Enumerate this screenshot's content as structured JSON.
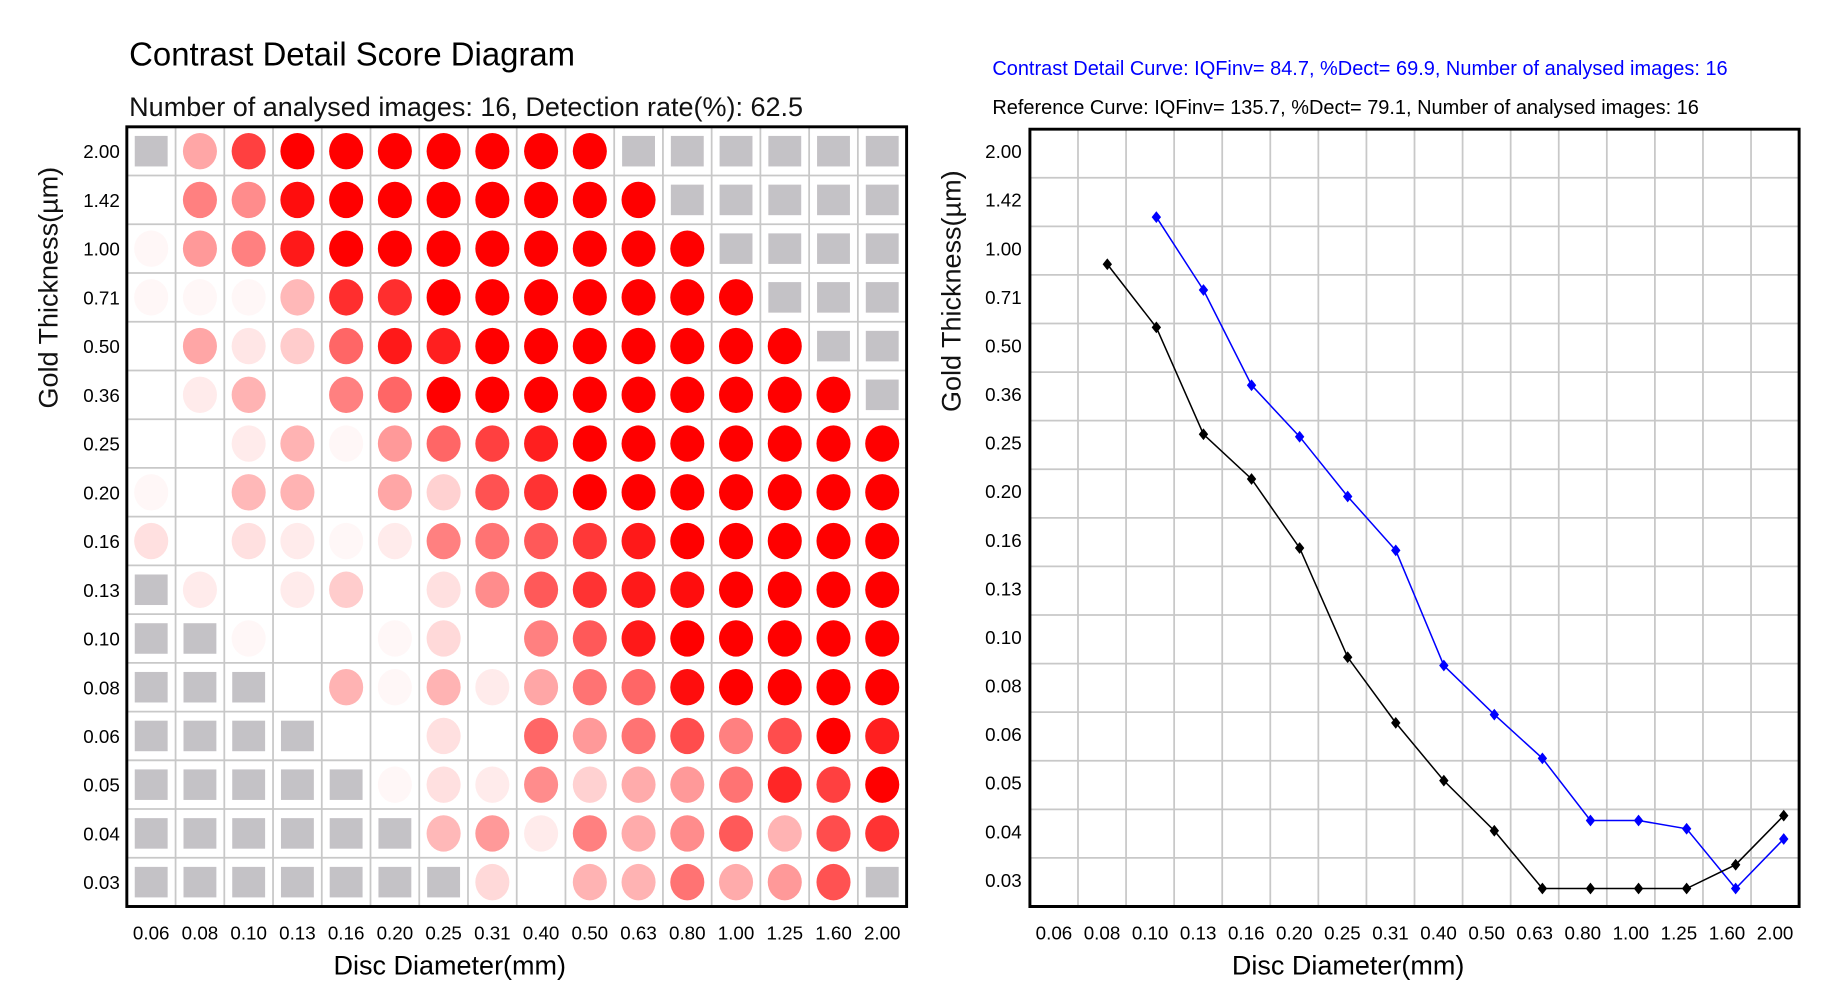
{
  "chart_data": [
    {
      "type": "heatmap",
      "title": "Contrast Detail Score Diagram",
      "subtitle": "Number of analysed images: 16, Detection rate(%): 62.5",
      "xlabel": "Disc Diameter(mm)",
      "ylabel": "Gold Thickness(µm)",
      "x_categories": [
        "0.06",
        "0.08",
        "0.10",
        "0.13",
        "0.16",
        "0.20",
        "0.25",
        "0.31",
        "0.40",
        "0.50",
        "0.63",
        "0.80",
        "1.00",
        "1.25",
        "1.60",
        "2.00"
      ],
      "y_categories": [
        "2.00",
        "1.42",
        "1.00",
        "0.71",
        "0.50",
        "0.36",
        "0.25",
        "0.20",
        "0.16",
        "0.13",
        "0.10",
        "0.08",
        "0.06",
        "0.05",
        "0.04",
        "0.03"
      ],
      "cell_legend": {
        "S": "not scored (grey square)",
        "number": "detection score 0–1 (red intensity)"
      },
      "colors": {
        "detected": "#ff0000",
        "not_scored": "#c4c2c6",
        "grid": "#c8c8c8"
      },
      "cells": [
        [
          "S",
          0.35,
          0.75,
          1,
          1,
          1,
          1,
          1,
          1,
          1,
          "S",
          "S",
          "S",
          "S",
          "S",
          "S"
        ],
        [
          0,
          0.5,
          0.45,
          0.95,
          1,
          1,
          1,
          1,
          1,
          1,
          1,
          "S",
          "S",
          "S",
          "S",
          "S"
        ],
        [
          0.03,
          0.4,
          0.5,
          0.9,
          1,
          1,
          1,
          1,
          1,
          1,
          1,
          1,
          "S",
          "S",
          "S",
          "S"
        ],
        [
          0.03,
          0.03,
          0.03,
          0.28,
          0.82,
          0.82,
          1,
          1,
          1,
          1,
          1,
          1,
          1,
          "S",
          "S",
          "S"
        ],
        [
          0,
          0.35,
          0.1,
          0.2,
          0.6,
          0.9,
          0.88,
          1,
          1,
          1,
          1,
          1,
          1,
          1,
          "S",
          "S"
        ],
        [
          0,
          0.08,
          0.3,
          0,
          0.5,
          0.6,
          1,
          1,
          1,
          1,
          1,
          1,
          1,
          1,
          1,
          "S"
        ],
        [
          0,
          0,
          0.08,
          0.3,
          0.03,
          0.4,
          0.6,
          0.75,
          0.88,
          1,
          1,
          1,
          1,
          1,
          1,
          1
        ],
        [
          0.03,
          0,
          0.28,
          0.3,
          0,
          0.35,
          0.18,
          0.68,
          0.8,
          1,
          1,
          1,
          1,
          1,
          1,
          1
        ],
        [
          0.12,
          0,
          0.12,
          0.08,
          0.03,
          0.08,
          0.5,
          0.55,
          0.65,
          0.78,
          0.9,
          1,
          1,
          1,
          1,
          1
        ],
        [
          "S",
          0.08,
          0,
          0.08,
          0.2,
          0,
          0.12,
          0.45,
          0.65,
          0.8,
          0.9,
          0.95,
          1,
          1,
          1,
          1
        ],
        [
          "S",
          "S",
          0.03,
          0,
          0,
          0.03,
          0.15,
          0,
          0.5,
          0.65,
          0.9,
          1,
          1,
          1,
          1,
          1
        ],
        [
          "S",
          "S",
          "S",
          0,
          0.3,
          0.03,
          0.3,
          0.08,
          0.35,
          0.55,
          0.6,
          0.95,
          1,
          1,
          1,
          1
        ],
        [
          "S",
          "S",
          "S",
          "S",
          0,
          0,
          0.12,
          0,
          0.6,
          0.4,
          0.55,
          0.7,
          0.5,
          0.7,
          1,
          0.88
        ],
        [
          "S",
          "S",
          "S",
          "S",
          "S",
          0.03,
          0.12,
          0.08,
          0.45,
          0.18,
          0.33,
          0.4,
          0.55,
          0.85,
          0.75,
          1
        ],
        [
          "S",
          "S",
          "S",
          "S",
          "S",
          "S",
          0.28,
          0.4,
          0.08,
          0.5,
          0.33,
          0.45,
          0.65,
          0.3,
          0.7,
          0.8
        ],
        [
          "S",
          "S",
          "S",
          "S",
          "S",
          "S",
          "S",
          0.15,
          0,
          0.3,
          0.3,
          0.55,
          0.33,
          0.4,
          0.68,
          "S"
        ]
      ]
    },
    {
      "type": "line",
      "xlabel": "Disc Diameter(mm)",
      "ylabel": "Gold Thickness(µm)",
      "x_categories": [
        "0.06",
        "0.08",
        "0.10",
        "0.13",
        "0.16",
        "0.20",
        "0.25",
        "0.31",
        "0.40",
        "0.50",
        "0.63",
        "0.80",
        "1.00",
        "1.25",
        "1.60",
        "2.00"
      ],
      "y_categories": [
        "2.00",
        "1.42",
        "1.00",
        "0.71",
        "0.50",
        "0.36",
        "0.25",
        "0.20",
        "0.16",
        "0.13",
        "0.10",
        "0.08",
        "0.06",
        "0.05",
        "0.04",
        "0.03"
      ],
      "grid": true,
      "index_note": "points given in category-index units: x from 0.06 column (0) rightward, y from 2.00 row (0) downward",
      "series": [
        {
          "name": "Contrast Detail Curve: IQFinv= 84.7, %Dect= 69.9, Number of analysed images: 16",
          "color": "#0000ff",
          "x_index": [
            2.63,
            3.61,
            4.61,
            5.61,
            6.61,
            7.61,
            8.61,
            9.66,
            10.66,
            11.66,
            12.66,
            13.66,
            14.68,
            15.68
          ],
          "y_index": [
            1.81,
            3.31,
            5.27,
            6.33,
            7.56,
            8.67,
            11.04,
            12.05,
            12.95,
            14.23,
            14.23,
            14.4,
            15.63,
            14.61
          ]
        },
        {
          "name": "Reference Curve: IQFinv= 135.7, %Dect= 79.1, Number of analysed images: 16",
          "color": "#000000",
          "x_index": [
            1.61,
            2.63,
            3.61,
            4.61,
            5.61,
            6.61,
            7.61,
            8.61,
            9.66,
            10.66,
            11.66,
            12.66,
            13.66,
            14.68,
            15.68
          ],
          "y_index": [
            2.78,
            4.08,
            6.28,
            7.2,
            8.62,
            10.87,
            12.22,
            13.41,
            14.44,
            15.63,
            15.63,
            15.63,
            15.63,
            15.14,
            14.13
          ]
        }
      ]
    }
  ]
}
